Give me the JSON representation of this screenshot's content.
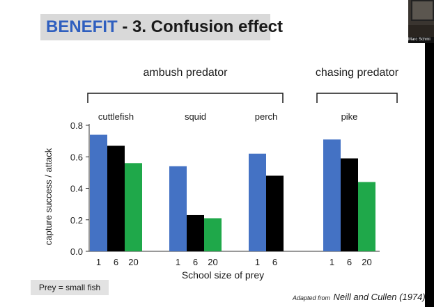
{
  "slide": {
    "title_accent": "BENEFIT",
    "title_rest": " - 3. Confusion effect",
    "prey_note": "Prey = small fish",
    "citation_prefix": "Adapted from",
    "citation_source": "Neill and Cullen (1974)",
    "webcam_name": "Marc Schmi",
    "accent_color": "#2f5fbf"
  },
  "chart_data": {
    "type": "bar",
    "xlabel": "School size of prey",
    "ylabel": "capture success / attack",
    "ylim": [
      0,
      0.8
    ],
    "yticks": [
      "0.0",
      "0.2",
      "0.4",
      "0.6",
      "0.8"
    ],
    "brackets": [
      {
        "label": "ambush predator",
        "covers": [
          "cuttlefish",
          "squid",
          "perch"
        ]
      },
      {
        "label": "chasing predator",
        "covers": [
          "pike"
        ]
      }
    ],
    "groups": [
      {
        "name": "cuttlefish",
        "bars": [
          {
            "size": "1",
            "value": 0.74
          },
          {
            "size": "6",
            "value": 0.67
          },
          {
            "size": "20",
            "value": 0.56
          }
        ]
      },
      {
        "name": "squid",
        "bars": [
          {
            "size": "1",
            "value": 0.54
          },
          {
            "size": "6",
            "value": 0.23
          },
          {
            "size": "20",
            "value": 0.21
          }
        ]
      },
      {
        "name": "perch",
        "bars": [
          {
            "size": "1",
            "value": 0.62
          },
          {
            "size": "6",
            "value": 0.48
          }
        ]
      },
      {
        "name": "pike",
        "bars": [
          {
            "size": "1",
            "value": 0.71
          },
          {
            "size": "6",
            "value": 0.59
          },
          {
            "size": "20",
            "value": 0.44
          }
        ]
      }
    ],
    "series_colors": {
      "1": "#4472c4",
      "6": "#000000",
      "20": "#1fa84a"
    }
  }
}
